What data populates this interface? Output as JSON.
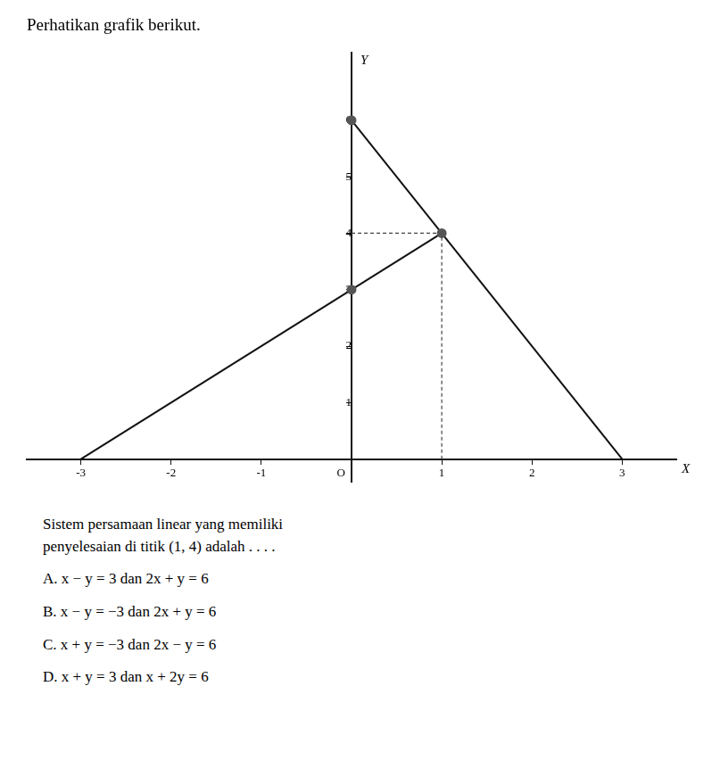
{
  "chart_data": {
    "type": "line",
    "title": "Perhatikan grafik berikut.",
    "xlabel": "X",
    "ylabel": "Y",
    "xlim": [
      -3.6,
      3.6
    ],
    "ylim": [
      -0.4,
      7.2
    ],
    "xticks": [
      -3,
      -2,
      -1,
      1,
      2,
      3
    ],
    "yticks": [
      1,
      2,
      3,
      4,
      5,
      6
    ],
    "grid": false,
    "series": [
      {
        "x": [
          -3.0,
          1.0
        ],
        "values": [
          0.0,
          4.0
        ],
        "color": "#111111",
        "line_style": "solid",
        "marker": "none"
      },
      {
        "x": [
          0.0,
          3.0
        ],
        "values": [
          6.0,
          0.0
        ],
        "color": "#111111",
        "line_style": "solid",
        "marker": "none"
      },
      {
        "x": [
          1,
          1
        ],
        "values": [
          0,
          4
        ],
        "color": "#444444",
        "line_style": "dashed",
        "marker": "none"
      },
      {
        "x": [
          0,
          1
        ],
        "values": [
          4,
          4
        ],
        "color": "#444444",
        "line_style": "dashed",
        "marker": "none"
      },
      {
        "x": [
          1
        ],
        "values": [
          4
        ],
        "color": "#555555",
        "line_style": "none",
        "marker": "circle"
      },
      {
        "x": [
          0
        ],
        "values": [
          3
        ],
        "color": "#555555",
        "line_style": "none",
        "marker": "circle"
      },
      {
        "x": [
          0
        ],
        "values": [
          6
        ],
        "color": "#555555",
        "line_style": "none",
        "marker": "circle"
      }
    ],
    "annotations": [
      {
        "text": "O",
        "x": 0,
        "y": 0
      },
      {
        "text": "Sistem persamaan linear yang memiliki"
      },
      {
        "text": "penyelesaian di titik (1, 4) adalah . . . ."
      },
      {
        "text": "A.   x − y = 3 dan 2x + y = 6"
      },
      {
        "text": "B.   x − y = −3 dan 2x + y = 6"
      },
      {
        "text": "C.   x + y = −3 dan 2x − y = 6"
      },
      {
        "text": "D.   x + y = 3 dan x + 2y = 6"
      }
    ]
  }
}
